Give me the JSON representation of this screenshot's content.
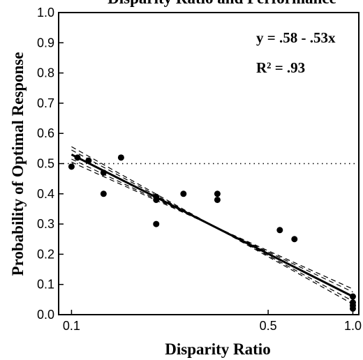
{
  "chart_data": {
    "type": "scatter",
    "title": "Disparity Ratio and Performance",
    "xlabel": "Disparity Ratio",
    "ylabel": "Probability of Optimal Response",
    "x_scale": "log",
    "xlim": [
      0.09,
      1.05
    ],
    "ylim": [
      0.0,
      1.0
    ],
    "x_ticks": [
      0.1,
      0.5,
      1.0
    ],
    "x_tick_labels": [
      "0.1",
      "0.5",
      "1.0"
    ],
    "y_ticks": [
      0.0,
      0.1,
      0.2,
      0.3,
      0.4,
      0.5,
      0.6,
      0.7,
      0.8,
      0.9,
      1.0
    ],
    "y_tick_labels": [
      "0.0",
      "0.1",
      "0.2",
      "0.3",
      "0.4",
      "0.5",
      "0.6",
      "0.7",
      "0.8",
      "0.9",
      "1.0"
    ],
    "grid": false,
    "series": [
      {
        "points": [
          {
            "x": 0.1,
            "y": 0.49
          },
          {
            "x": 0.105,
            "y": 0.52
          },
          {
            "x": 0.115,
            "y": 0.51
          },
          {
            "x": 0.13,
            "y": 0.47
          },
          {
            "x": 0.13,
            "y": 0.4
          },
          {
            "x": 0.15,
            "y": 0.52
          },
          {
            "x": 0.2,
            "y": 0.39
          },
          {
            "x": 0.2,
            "y": 0.38
          },
          {
            "x": 0.2,
            "y": 0.3
          },
          {
            "x": 0.25,
            "y": 0.4
          },
          {
            "x": 0.33,
            "y": 0.4
          },
          {
            "x": 0.33,
            "y": 0.38
          },
          {
            "x": 0.55,
            "y": 0.28
          },
          {
            "x": 0.62,
            "y": 0.25
          },
          {
            "x": 1.0,
            "y": 0.06
          },
          {
            "x": 1.0,
            "y": 0.04
          },
          {
            "x": 1.0,
            "y": 0.03
          },
          {
            "x": 1.0,
            "y": 0.02
          }
        ]
      }
    ],
    "fit_line": {
      "x": [
        0.1,
        1.0
      ],
      "y": [
        0.53,
        0.06
      ],
      "style": "solid"
    },
    "confidence_bands": [
      {
        "x": [
          0.1,
          1.0
        ],
        "y": [
          0.556,
          0.035
        ]
      },
      {
        "x": [
          0.1,
          1.0
        ],
        "y": [
          0.545,
          0.045
        ]
      },
      {
        "x": [
          0.1,
          1.0
        ],
        "y": [
          0.515,
          0.075
        ]
      },
      {
        "x": [
          0.1,
          1.0
        ],
        "y": [
          0.505,
          0.085
        ]
      }
    ],
    "reference_line": {
      "y": 0.5,
      "style": "dotted"
    },
    "annotations": [
      "y = .58 - .53x",
      "R² = .93"
    ]
  }
}
